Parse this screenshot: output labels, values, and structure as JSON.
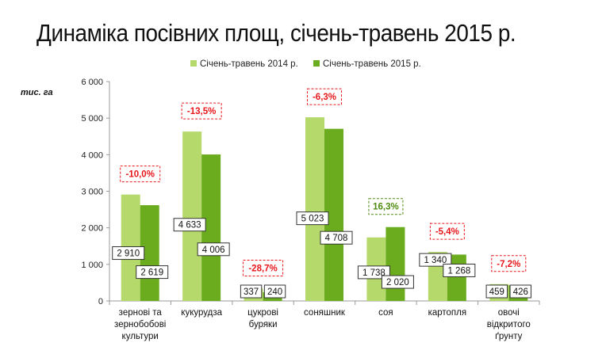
{
  "page": {
    "title": "Динаміка посівних площ, січень-травень 2015 р."
  },
  "chart_data": {
    "type": "bar",
    "unit_label": "тис. га",
    "categories": [
      [
        "зернові та",
        "зернобобові",
        "культури"
      ],
      [
        "кукурудза"
      ],
      [
        "цукрові",
        "буряки"
      ],
      [
        "соняшник"
      ],
      [
        "соя"
      ],
      [
        "картопля"
      ],
      [
        "овочі",
        "відкритого",
        "ґрунту"
      ]
    ],
    "series": [
      {
        "name": "Січень-травень 2014 р.",
        "color": "#b5d96b",
        "values": [
          2910,
          4633,
          337,
          5023,
          1738,
          1340,
          459
        ],
        "labels": [
          "2 910",
          "4 633",
          "337",
          "5 023",
          "1 738",
          "1 340",
          "459"
        ]
      },
      {
        "name": "Січень-травень 2015 р.",
        "color": "#6aac1e",
        "values": [
          2619,
          4006,
          240,
          4708,
          2020,
          1268,
          426
        ],
        "labels": [
          "2 619",
          "4 006",
          "240",
          "4 708",
          "2 020",
          "1 268",
          "426"
        ]
      }
    ],
    "changes": [
      "-10,0%",
      "-13,5%",
      "-28,7%",
      "-6,3%",
      "16,3%",
      "-5,4%",
      "-7,2%"
    ],
    "change_colors": {
      "negative": "#e8161b",
      "positive": "#4f8a10"
    },
    "ylim": [
      0,
      6000
    ],
    "yticks": [
      0,
      1000,
      2000,
      3000,
      4000,
      5000,
      6000
    ],
    "ytick_labels": [
      "0",
      "1 000",
      "2 000",
      "3 000",
      "4 000",
      "5 000",
      "6 000"
    ],
    "legend_position": "top",
    "grid": false
  }
}
